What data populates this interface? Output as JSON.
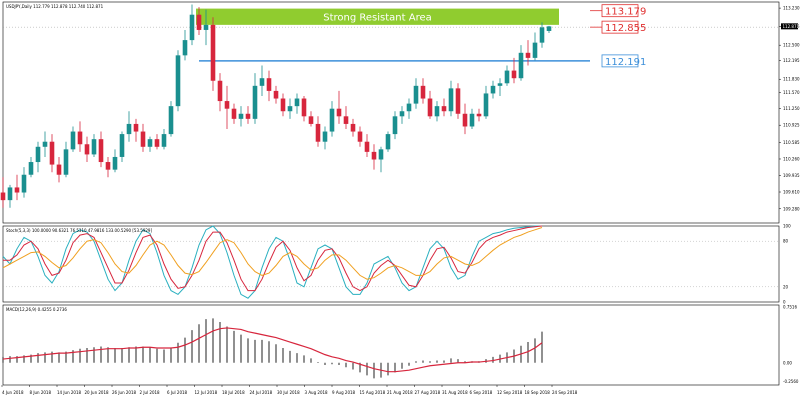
{
  "chart_data": [
    {
      "type": "candlestick",
      "title": "USDJPY,Daily  112.779 112.878 112.740 112.871",
      "price_ticks": [
        "113.230",
        "112.865",
        "112.500",
        "112.195",
        "111.830",
        "111.570",
        "111.250",
        "110.925",
        "110.585",
        "110.260",
        "109.935",
        "109.610",
        "109.280"
      ],
      "ylim": [
        109.0,
        113.35
      ],
      "date_ticks": [
        "4 Jun 2018",
        "8 Jun 2018",
        "14 Jun 2018",
        "20 Jun 2018",
        "26 Jun 2018",
        "2 Jul 2018",
        "6 Jul 2018",
        "12 Jul 2018",
        "18 Jul 2018",
        "24 Jul 2018",
        "30 Jul 2018",
        "3 Aug 2018",
        "9 Aug 2018",
        "15 Aug 2018",
        "21 Aug 2018",
        "27 Aug 2018",
        "31 Aug 2018",
        "6 Sep 2018",
        "12 Sep 2018",
        "18 Sep 2018",
        "24 Sep 2018"
      ],
      "ohlc": [
        [
          109.6,
          109.9,
          109.3,
          109.45
        ],
        [
          109.45,
          109.75,
          109.3,
          109.7
        ],
        [
          109.7,
          109.95,
          109.45,
          109.6
        ],
        [
          109.6,
          110.1,
          109.5,
          109.95
        ],
        [
          109.95,
          110.3,
          109.9,
          110.2
        ],
        [
          110.2,
          110.6,
          110.0,
          110.5
        ],
        [
          110.5,
          110.8,
          110.3,
          110.6
        ],
        [
          110.6,
          110.75,
          110.0,
          110.15
        ],
        [
          110.15,
          110.3,
          109.8,
          109.95
        ],
        [
          109.95,
          110.6,
          109.9,
          110.45
        ],
        [
          110.45,
          110.9,
          110.4,
          110.8
        ],
        [
          110.8,
          111.0,
          110.4,
          110.55
        ],
        [
          110.55,
          110.7,
          110.2,
          110.35
        ],
        [
          110.35,
          110.75,
          110.3,
          110.65
        ],
        [
          110.65,
          110.8,
          110.1,
          110.2
        ],
        [
          110.2,
          110.3,
          109.9,
          110.05
        ],
        [
          110.05,
          110.45,
          110.0,
          110.3
        ],
        [
          110.3,
          110.8,
          110.2,
          110.75
        ],
        [
          110.75,
          111.2,
          110.6,
          110.95
        ],
        [
          110.95,
          111.05,
          110.6,
          110.8
        ],
        [
          110.8,
          110.95,
          110.4,
          110.5
        ],
        [
          110.5,
          110.7,
          110.4,
          110.65
        ],
        [
          110.65,
          110.75,
          110.45,
          110.5
        ],
        [
          110.5,
          110.85,
          110.45,
          110.75
        ],
        [
          110.75,
          111.4,
          110.7,
          111.3
        ],
        [
          111.3,
          112.4,
          111.2,
          112.3
        ],
        [
          112.3,
          112.8,
          112.2,
          112.6
        ],
        [
          112.6,
          113.3,
          112.5,
          113.1
        ],
        [
          113.1,
          113.25,
          112.7,
          112.8
        ],
        [
          112.8,
          113.2,
          112.5,
          112.9
        ],
        [
          112.9,
          113.05,
          111.6,
          111.8
        ],
        [
          111.8,
          111.95,
          111.2,
          111.4
        ],
        [
          111.4,
          111.7,
          110.85,
          111.25
        ],
        [
          111.25,
          111.35,
          110.95,
          111.05
        ],
        [
          111.05,
          111.3,
          110.9,
          111.15
        ],
        [
          111.15,
          111.3,
          110.95,
          111.05
        ],
        [
          111.05,
          111.95,
          110.95,
          111.7
        ],
        [
          111.7,
          112.1,
          111.5,
          111.85
        ],
        [
          111.85,
          112.0,
          111.4,
          111.6
        ],
        [
          111.6,
          111.7,
          111.35,
          111.45
        ],
        [
          111.45,
          111.55,
          111.1,
          111.2
        ],
        [
          111.2,
          111.45,
          111.05,
          111.3
        ],
        [
          111.3,
          111.55,
          111.15,
          111.45
        ],
        [
          111.45,
          111.5,
          111.0,
          111.1
        ],
        [
          111.1,
          111.2,
          110.9,
          110.95
        ],
        [
          110.95,
          111.1,
          110.5,
          110.6
        ],
        [
          110.6,
          110.9,
          110.45,
          110.8
        ],
        [
          110.8,
          111.4,
          110.7,
          111.25
        ],
        [
          111.25,
          111.6,
          110.95,
          111.1
        ],
        [
          111.1,
          111.3,
          110.85,
          110.95
        ],
        [
          110.95,
          111.05,
          110.7,
          110.8
        ],
        [
          110.8,
          110.9,
          110.5,
          110.6
        ],
        [
          110.6,
          110.75,
          110.3,
          110.4
        ],
        [
          110.4,
          110.55,
          110.05,
          110.25
        ],
        [
          110.25,
          110.5,
          110.0,
          110.45
        ],
        [
          110.45,
          110.8,
          110.4,
          110.75
        ],
        [
          110.75,
          111.2,
          110.65,
          111.1
        ],
        [
          111.1,
          111.3,
          110.95,
          111.2
        ],
        [
          111.2,
          111.45,
          111.05,
          111.35
        ],
        [
          111.35,
          111.85,
          111.25,
          111.7
        ],
        [
          111.7,
          111.85,
          111.35,
          111.45
        ],
        [
          111.45,
          111.6,
          111.05,
          111.1
        ],
        [
          111.1,
          111.4,
          111.0,
          111.3
        ],
        [
          111.3,
          111.45,
          111.1,
          111.2
        ],
        [
          111.2,
          111.8,
          111.1,
          111.65
        ],
        [
          111.65,
          111.75,
          111.05,
          111.15
        ],
        [
          111.15,
          111.35,
          110.75,
          110.9
        ],
        [
          110.9,
          111.25,
          110.85,
          111.15
        ],
        [
          111.15,
          111.25,
          111.0,
          111.1
        ],
        [
          111.1,
          111.7,
          111.05,
          111.55
        ],
        [
          111.55,
          111.8,
          111.45,
          111.7
        ],
        [
          111.7,
          111.85,
          111.5,
          111.75
        ],
        [
          111.75,
          112.1,
          111.7,
          112.0
        ],
        [
          112.0,
          112.25,
          111.75,
          111.85
        ],
        [
          111.85,
          112.5,
          111.8,
          112.35
        ],
        [
          112.35,
          112.6,
          112.1,
          112.25
        ],
        [
          112.25,
          112.75,
          112.2,
          112.55
        ],
        [
          112.55,
          112.95,
          112.45,
          112.85
        ],
        [
          112.78,
          112.88,
          112.74,
          112.87
        ]
      ],
      "annotations": [
        {
          "type": "zone",
          "label": "Strong Resistant Area",
          "from": 112.9,
          "to": 113.22,
          "color": "#90cc2f"
        },
        {
          "type": "hline",
          "value": 112.191,
          "label": "112.191",
          "color": "#3c8fd9"
        }
      ],
      "price_labels": [
        {
          "value": 113.179,
          "label": "113.179",
          "color": "#e03030"
        },
        {
          "value": 112.855,
          "label": "112.855",
          "color": "#e03030"
        },
        {
          "value": 112.191,
          "label": "112.191",
          "color": "#3c8fd9"
        }
      ],
      "current_price": {
        "value": 112.871,
        "label": "112.871"
      },
      "colors": {
        "bull": "#1a8f8f",
        "bear": "#d7263d",
        "zone": "#90cc2f",
        "support": "#3c8fd9",
        "price_label": "#e03030"
      }
    },
    {
      "type": "line",
      "title": "Stoch(5,3,3) 100.0000 90.6321 76.5310 47.9816 133.00.5290 [53.5929]",
      "y_ticks": [
        "100",
        "80",
        "20",
        "0"
      ],
      "ylim": [
        0,
        100
      ],
      "levels": [
        80,
        20
      ],
      "series": [
        {
          "color": "#2ab0c0",
          "values": [
            60,
            50,
            70,
            85,
            80,
            60,
            35,
            25,
            40,
            70,
            90,
            95,
            92,
            80,
            55,
            30,
            15,
            25,
            55,
            80,
            95,
            90,
            65,
            35,
            15,
            10,
            20,
            45,
            75,
            95,
            100,
            90,
            65,
            35,
            10,
            5,
            15,
            45,
            70,
            85,
            80,
            55,
            25,
            20,
            45,
            70,
            75,
            70,
            45,
            20,
            10,
            10,
            25,
            50,
            55,
            60,
            45,
            25,
            15,
            20,
            45,
            70,
            80,
            70,
            45,
            30,
            35,
            60,
            80,
            85,
            90,
            92,
            95,
            97,
            98,
            99,
            100,
            100
          ]
        },
        {
          "color": "#d7263d",
          "values": [
            55,
            55,
            62,
            75,
            80,
            70,
            50,
            35,
            38,
            55,
            78,
            88,
            90,
            85,
            65,
            45,
            25,
            25,
            42,
            65,
            85,
            88,
            75,
            50,
            30,
            18,
            20,
            35,
            55,
            80,
            92,
            92,
            78,
            55,
            30,
            15,
            15,
            30,
            52,
            72,
            80,
            68,
            45,
            28,
            35,
            55,
            68,
            70,
            58,
            38,
            20,
            15,
            20,
            38,
            48,
            55,
            48,
            35,
            22,
            20,
            35,
            55,
            70,
            72,
            58,
            40,
            38,
            52,
            70,
            80,
            85,
            88,
            92,
            94,
            96,
            98,
            99,
            100
          ]
        },
        {
          "color": "#f0a020",
          "values": [
            45,
            50,
            55,
            60,
            65,
            66,
            60,
            52,
            45,
            48,
            58,
            70,
            80,
            82,
            78,
            65,
            50,
            40,
            38,
            48,
            62,
            75,
            80,
            75,
            62,
            48,
            38,
            36,
            40,
            52,
            65,
            78,
            82,
            78,
            65,
            50,
            40,
            35,
            38,
            48,
            60,
            65,
            60,
            50,
            42,
            45,
            55,
            62,
            62,
            55,
            45,
            35,
            30,
            32,
            38,
            45,
            48,
            45,
            40,
            35,
            35,
            40,
            50,
            58,
            60,
            55,
            50,
            48,
            52,
            60,
            68,
            75,
            80,
            85,
            88,
            92,
            95,
            98
          ]
        }
      ]
    },
    {
      "type": "bar",
      "title": "MACD(12,26,9) 0.4255 0.2736",
      "y_ticks": [
        "0.7516",
        "0.00",
        "-0.2560"
      ],
      "ylim": [
        -0.3,
        0.78
      ],
      "series": [
        {
          "name": "MACD",
          "color": "#000000",
          "values": [
            0.08,
            0.09,
            0.09,
            0.1,
            0.11,
            0.13,
            0.14,
            0.15,
            0.14,
            0.15,
            0.17,
            0.19,
            0.2,
            0.21,
            0.22,
            0.21,
            0.2,
            0.2,
            0.21,
            0.22,
            0.22,
            0.21,
            0.19,
            0.18,
            0.2,
            0.27,
            0.34,
            0.44,
            0.52,
            0.59,
            0.6,
            0.55,
            0.49,
            0.43,
            0.38,
            0.33,
            0.31,
            0.31,
            0.29,
            0.25,
            0.2,
            0.16,
            0.13,
            0.1,
            0.06,
            0.01,
            -0.03,
            -0.02,
            -0.03,
            -0.06,
            -0.09,
            -0.13,
            -0.17,
            -0.21,
            -0.2,
            -0.17,
            -0.13,
            -0.08,
            -0.04,
            0.02,
            0.03,
            0.02,
            0.03,
            0.03,
            0.06,
            0.05,
            0.02,
            0.02,
            0.02,
            0.05,
            0.08,
            0.11,
            0.14,
            0.18,
            0.23,
            0.28,
            0.33,
            0.42
          ]
        },
        {
          "name": "Signal",
          "color": "#d7263d",
          "values": [
            0.05,
            0.06,
            0.07,
            0.08,
            0.09,
            0.1,
            0.11,
            0.12,
            0.13,
            0.13,
            0.14,
            0.15,
            0.16,
            0.17,
            0.18,
            0.19,
            0.19,
            0.19,
            0.2,
            0.2,
            0.21,
            0.21,
            0.2,
            0.2,
            0.2,
            0.21,
            0.24,
            0.28,
            0.33,
            0.38,
            0.43,
            0.46,
            0.47,
            0.46,
            0.45,
            0.42,
            0.4,
            0.38,
            0.36,
            0.34,
            0.31,
            0.28,
            0.25,
            0.22,
            0.19,
            0.15,
            0.11,
            0.08,
            0.06,
            0.03,
            0.01,
            -0.02,
            -0.05,
            -0.08,
            -0.1,
            -0.12,
            -0.12,
            -0.11,
            -0.1,
            -0.08,
            -0.06,
            -0.04,
            -0.03,
            -0.02,
            -0.01,
            0.0,
            0.0,
            0.01,
            0.01,
            0.02,
            0.03,
            0.05,
            0.07,
            0.09,
            0.12,
            0.15,
            0.2,
            0.27
          ]
        }
      ]
    }
  ]
}
